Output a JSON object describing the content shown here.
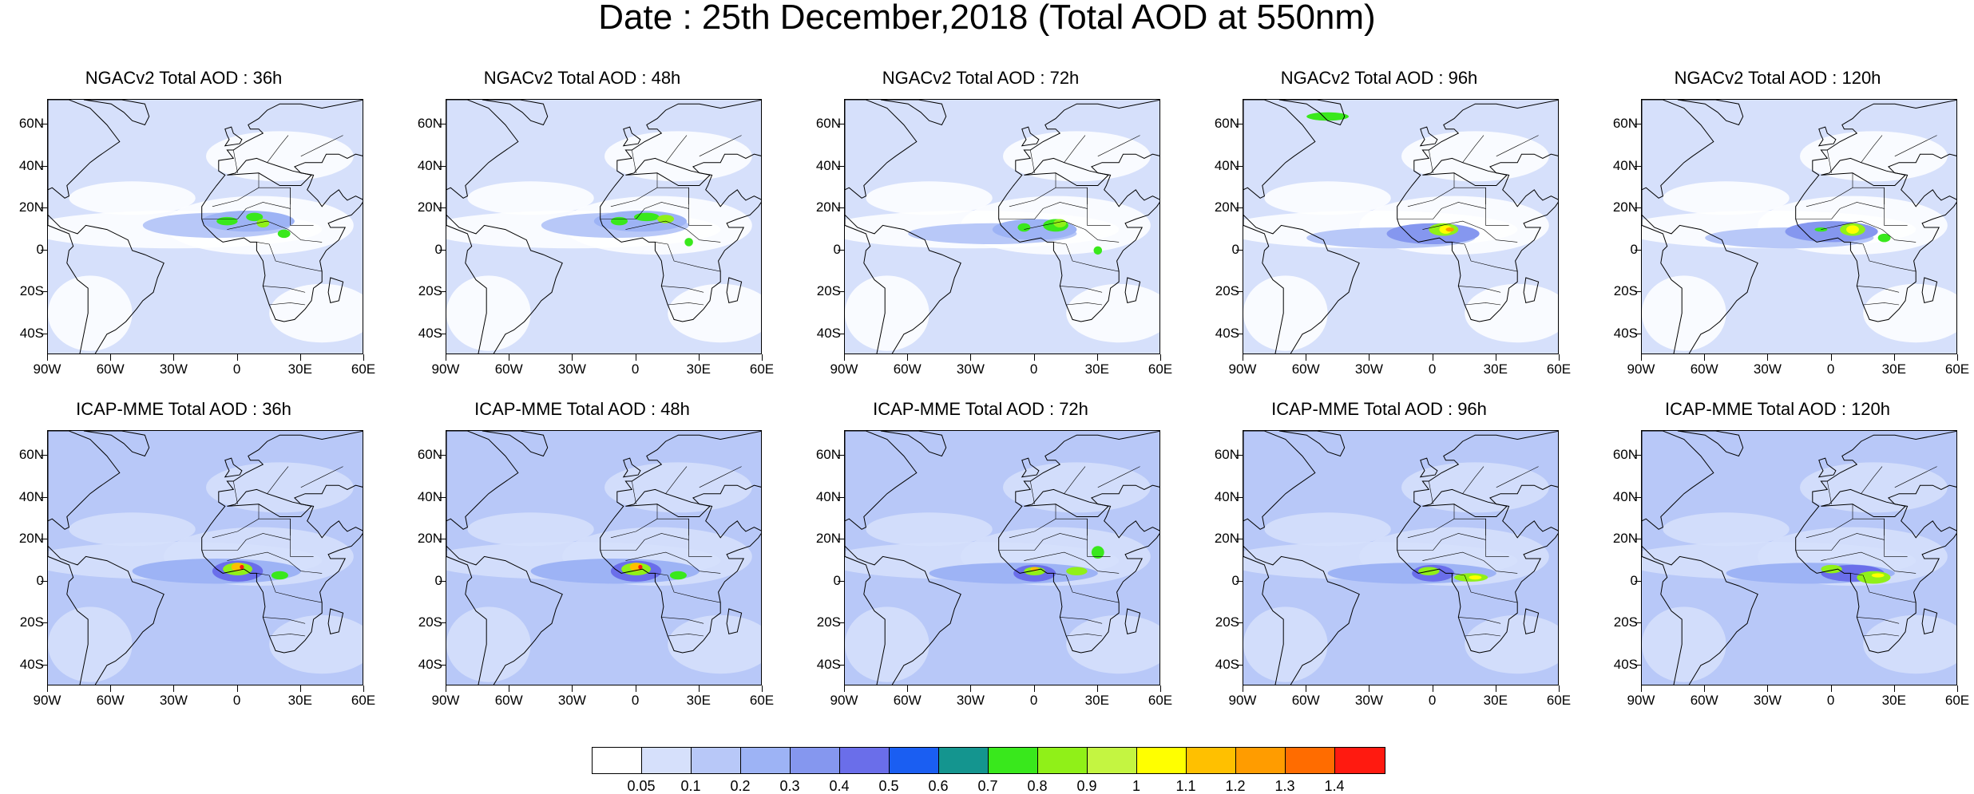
{
  "title": "Date : 25th December,2018 (Total AOD at 550nm)",
  "lat_labels": [
    "60N",
    "40N",
    "20N",
    "0",
    "20S",
    "40S"
  ],
  "lon_labels": [
    "90W",
    "60W",
    "30W",
    "0",
    "30E",
    "60E"
  ],
  "panels": [
    {
      "title": "NGACv2 Total AOD : 36h",
      "model": "NGACv2",
      "lead_hours": 36
    },
    {
      "title": "NGACv2 Total AOD : 48h",
      "model": "NGACv2",
      "lead_hours": 48
    },
    {
      "title": "NGACv2 Total AOD : 72h",
      "model": "NGACv2",
      "lead_hours": 72
    },
    {
      "title": "NGACv2 Total AOD : 96h",
      "model": "NGACv2",
      "lead_hours": 96
    },
    {
      "title": "NGACv2 Total AOD : 120h",
      "model": "NGACv2",
      "lead_hours": 120
    },
    {
      "title": "ICAP-MME Total AOD : 36h",
      "model": "ICAP-MME",
      "lead_hours": 36
    },
    {
      "title": "ICAP-MME Total AOD : 48h",
      "model": "ICAP-MME",
      "lead_hours": 48
    },
    {
      "title": "ICAP-MME Total AOD : 72h",
      "model": "ICAP-MME",
      "lead_hours": 72
    },
    {
      "title": "ICAP-MME Total AOD : 96h",
      "model": "ICAP-MME",
      "lead_hours": 96
    },
    {
      "title": "ICAP-MME Total AOD : 120h",
      "model": "ICAP-MME",
      "lead_hours": 120
    }
  ],
  "colorbar": {
    "labels": [
      "0.05",
      "0.1",
      "0.2",
      "0.3",
      "0.4",
      "0.5",
      "0.6",
      "0.7",
      "0.8",
      "0.9",
      "1",
      "1.1",
      "1.2",
      "1.3",
      "1.4"
    ],
    "colors": [
      "#ffffff",
      "#d6e0fb",
      "#b8c8f8",
      "#9db3f5",
      "#8597ef",
      "#6a6eea",
      "#1a5ef2",
      "#14958f",
      "#39e81c",
      "#90f018",
      "#c4f541",
      "#ffff00",
      "#ffc000",
      "#ff9c00",
      "#ff6c00",
      "#ff1a10"
    ]
  }
}
